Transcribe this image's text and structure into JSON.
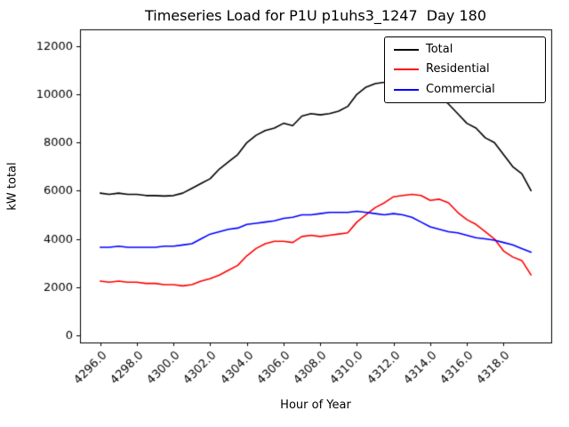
{
  "figure": {
    "background": "#ffffff"
  },
  "chart_data": {
    "type": "line",
    "title": "Timeseries Load for P1U p1uhs3_1247  Day 180",
    "xlabel": "Hour of Year",
    "ylabel": "kW total",
    "xlim": [
      4294.9,
      4320.6
    ],
    "ylim": [
      -300,
      12700
    ],
    "grid": false,
    "legend_position": "upper right",
    "xticks": [
      4296,
      4298,
      4300,
      4302,
      4304,
      4306,
      4308,
      4310,
      4312,
      4314,
      4316,
      4318
    ],
    "xtick_labels": [
      "4296.0",
      "4298.0",
      "4300.0",
      "4302.0",
      "4304.0",
      "4306.0",
      "4308.0",
      "4310.0",
      "4312.0",
      "4314.0",
      "4316.0",
      "4318.0"
    ],
    "yticks": [
      0,
      2000,
      4000,
      6000,
      8000,
      10000,
      12000
    ],
    "ytick_labels": [
      "0",
      "2000",
      "4000",
      "6000",
      "8000",
      "10000",
      "12000"
    ],
    "x": [
      4296.0,
      4296.5,
      4297.0,
      4297.5,
      4298.0,
      4298.5,
      4299.0,
      4299.5,
      4300.0,
      4300.5,
      4301.0,
      4301.5,
      4302.0,
      4302.5,
      4303.0,
      4303.5,
      4304.0,
      4304.5,
      4305.0,
      4305.5,
      4306.0,
      4306.5,
      4307.0,
      4307.5,
      4308.0,
      4308.5,
      4309.0,
      4309.5,
      4310.0,
      4310.5,
      4311.0,
      4311.5,
      4312.0,
      4312.5,
      4313.0,
      4313.5,
      4314.0,
      4314.5,
      4315.0,
      4315.5,
      4316.0,
      4316.5,
      4317.0,
      4317.5,
      4318.0,
      4318.5,
      4319.0,
      4319.5
    ],
    "series": [
      {
        "name": "Total",
        "color": "#000000",
        "values": [
          5900,
          5850,
          5900,
          5850,
          5850,
          5800,
          5800,
          5780,
          5800,
          5900,
          6100,
          6300,
          6500,
          6900,
          7200,
          7500,
          8000,
          8300,
          8500,
          8600,
          8800,
          8700,
          9100,
          9200,
          9150,
          9200,
          9300,
          9500,
          10000,
          10300,
          10450,
          10500,
          10650,
          10750,
          10700,
          10300,
          10050,
          10000,
          9600,
          9200,
          8800,
          8600,
          8200,
          8000,
          7500,
          7000,
          6700,
          6000
        ]
      },
      {
        "name": "Residential",
        "color": "#ff0000",
        "values": [
          2250,
          2200,
          2250,
          2200,
          2200,
          2150,
          2150,
          2100,
          2100,
          2050,
          2100,
          2250,
          2350,
          2500,
          2700,
          2900,
          3300,
          3600,
          3800,
          3900,
          3900,
          3850,
          4100,
          4150,
          4100,
          4150,
          4200,
          4250,
          4700,
          5000,
          5300,
          5500,
          5750,
          5800,
          5850,
          5800,
          5600,
          5650,
          5500,
          5100,
          4800,
          4600,
          4300,
          4000,
          3500,
          3250,
          3100,
          2500
        ]
      },
      {
        "name": "Commercial",
        "color": "#0000ff",
        "values": [
          3650,
          3650,
          3700,
          3650,
          3650,
          3650,
          3650,
          3700,
          3700,
          3750,
          3800,
          4000,
          4200,
          4300,
          4400,
          4450,
          4600,
          4650,
          4700,
          4750,
          4850,
          4900,
          5000,
          5000,
          5050,
          5100,
          5100,
          5100,
          5150,
          5100,
          5050,
          5000,
          5050,
          5000,
          4900,
          4700,
          4500,
          4400,
          4300,
          4250,
          4150,
          4050,
          4000,
          3950,
          3850,
          3750,
          3600,
          3450
        ]
      }
    ]
  }
}
